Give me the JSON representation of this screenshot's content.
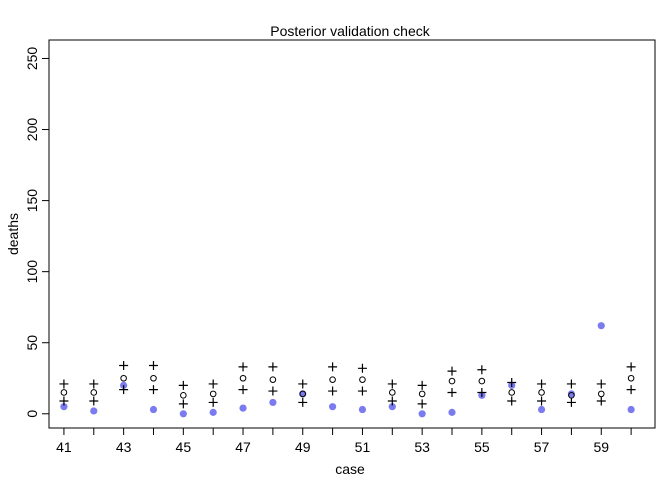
{
  "chart_data": {
    "type": "scatter",
    "title": "Posterior validation check",
    "xlabel": "case",
    "ylabel": "deaths",
    "xlim": [
      40.5,
      60.8
    ],
    "ylim": [
      -10,
      263
    ],
    "x_ticks": [
      41,
      42,
      43,
      44,
      45,
      46,
      47,
      48,
      49,
      50,
      51,
      52,
      53,
      54,
      55,
      56,
      57,
      58,
      59,
      60
    ],
    "x_tick_labels": [
      "41",
      "",
      "43",
      "",
      "45",
      "",
      "47",
      "",
      "49",
      "",
      "51",
      "",
      "53",
      "",
      "55",
      "",
      "57",
      "",
      "59",
      ""
    ],
    "y_ticks": [
      0,
      50,
      100,
      150,
      200,
      250
    ],
    "y_tick_labels": [
      "0",
      "50",
      "100",
      "150",
      "200",
      "250"
    ],
    "grid": false,
    "colors": {
      "observed": "#7b7bf0",
      "marker": "#000000"
    },
    "x": [
      41,
      42,
      43,
      44,
      45,
      46,
      47,
      48,
      49,
      50,
      51,
      52,
      53,
      54,
      55,
      56,
      57,
      58,
      59,
      60
    ],
    "series": [
      {
        "marker": "filled-circle",
        "values": [
          5,
          2,
          20,
          3,
          0,
          1,
          4,
          8,
          14,
          5,
          3,
          5,
          0,
          1,
          13,
          20,
          3,
          14,
          62,
          3
        ]
      },
      {
        "marker": "open-circle",
        "values": [
          15,
          15,
          25,
          25,
          13,
          14,
          25,
          24,
          14,
          24,
          24,
          15,
          14,
          23,
          23,
          15,
          15,
          13,
          14,
          25
        ]
      },
      {
        "marker": "plus",
        "values": [
          21,
          21,
          34,
          34,
          20,
          21,
          33,
          33,
          21,
          33,
          32,
          21,
          20,
          30,
          31,
          22,
          21,
          21,
          21,
          33
        ]
      },
      {
        "marker": "plus",
        "values": [
          9,
          9,
          17,
          17,
          7,
          8,
          17,
          16,
          8,
          16,
          16,
          9,
          7,
          15,
          15,
          9,
          9,
          8,
          9,
          17
        ]
      }
    ]
  }
}
